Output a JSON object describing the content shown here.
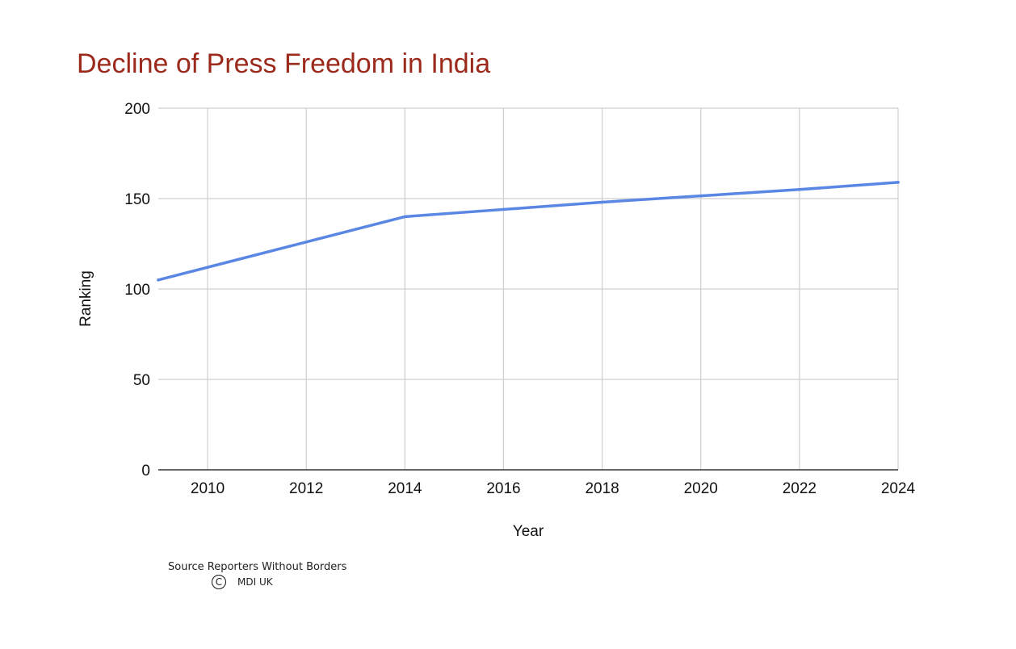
{
  "chart_data": {
    "type": "line",
    "title": "Decline of Press Freedom in India",
    "xlabel": "Year",
    "ylabel": "Ranking",
    "x": [
      2009,
      2010,
      2012,
      2014,
      2016,
      2018,
      2020,
      2022,
      2024
    ],
    "series": [
      {
        "values": [
          105,
          112,
          126,
          140,
          144,
          148,
          151.5,
          155,
          159
        ],
        "color": "#5b87e4"
      }
    ],
    "xlim": [
      2009,
      2024
    ],
    "ylim": [
      0,
      200
    ],
    "x_ticks": [
      "2010",
      "2012",
      "2014",
      "2016",
      "2018",
      "2020",
      "2022",
      "2024"
    ],
    "y_ticks": [
      "0",
      "50",
      "100",
      "150",
      "200"
    ],
    "grid": true,
    "legend": "none",
    "title_color": "#9c2a1c"
  },
  "footer": {
    "source": "Source Reporters Without Borders",
    "copyright_symbol": "C",
    "owner": "MDI UK"
  }
}
